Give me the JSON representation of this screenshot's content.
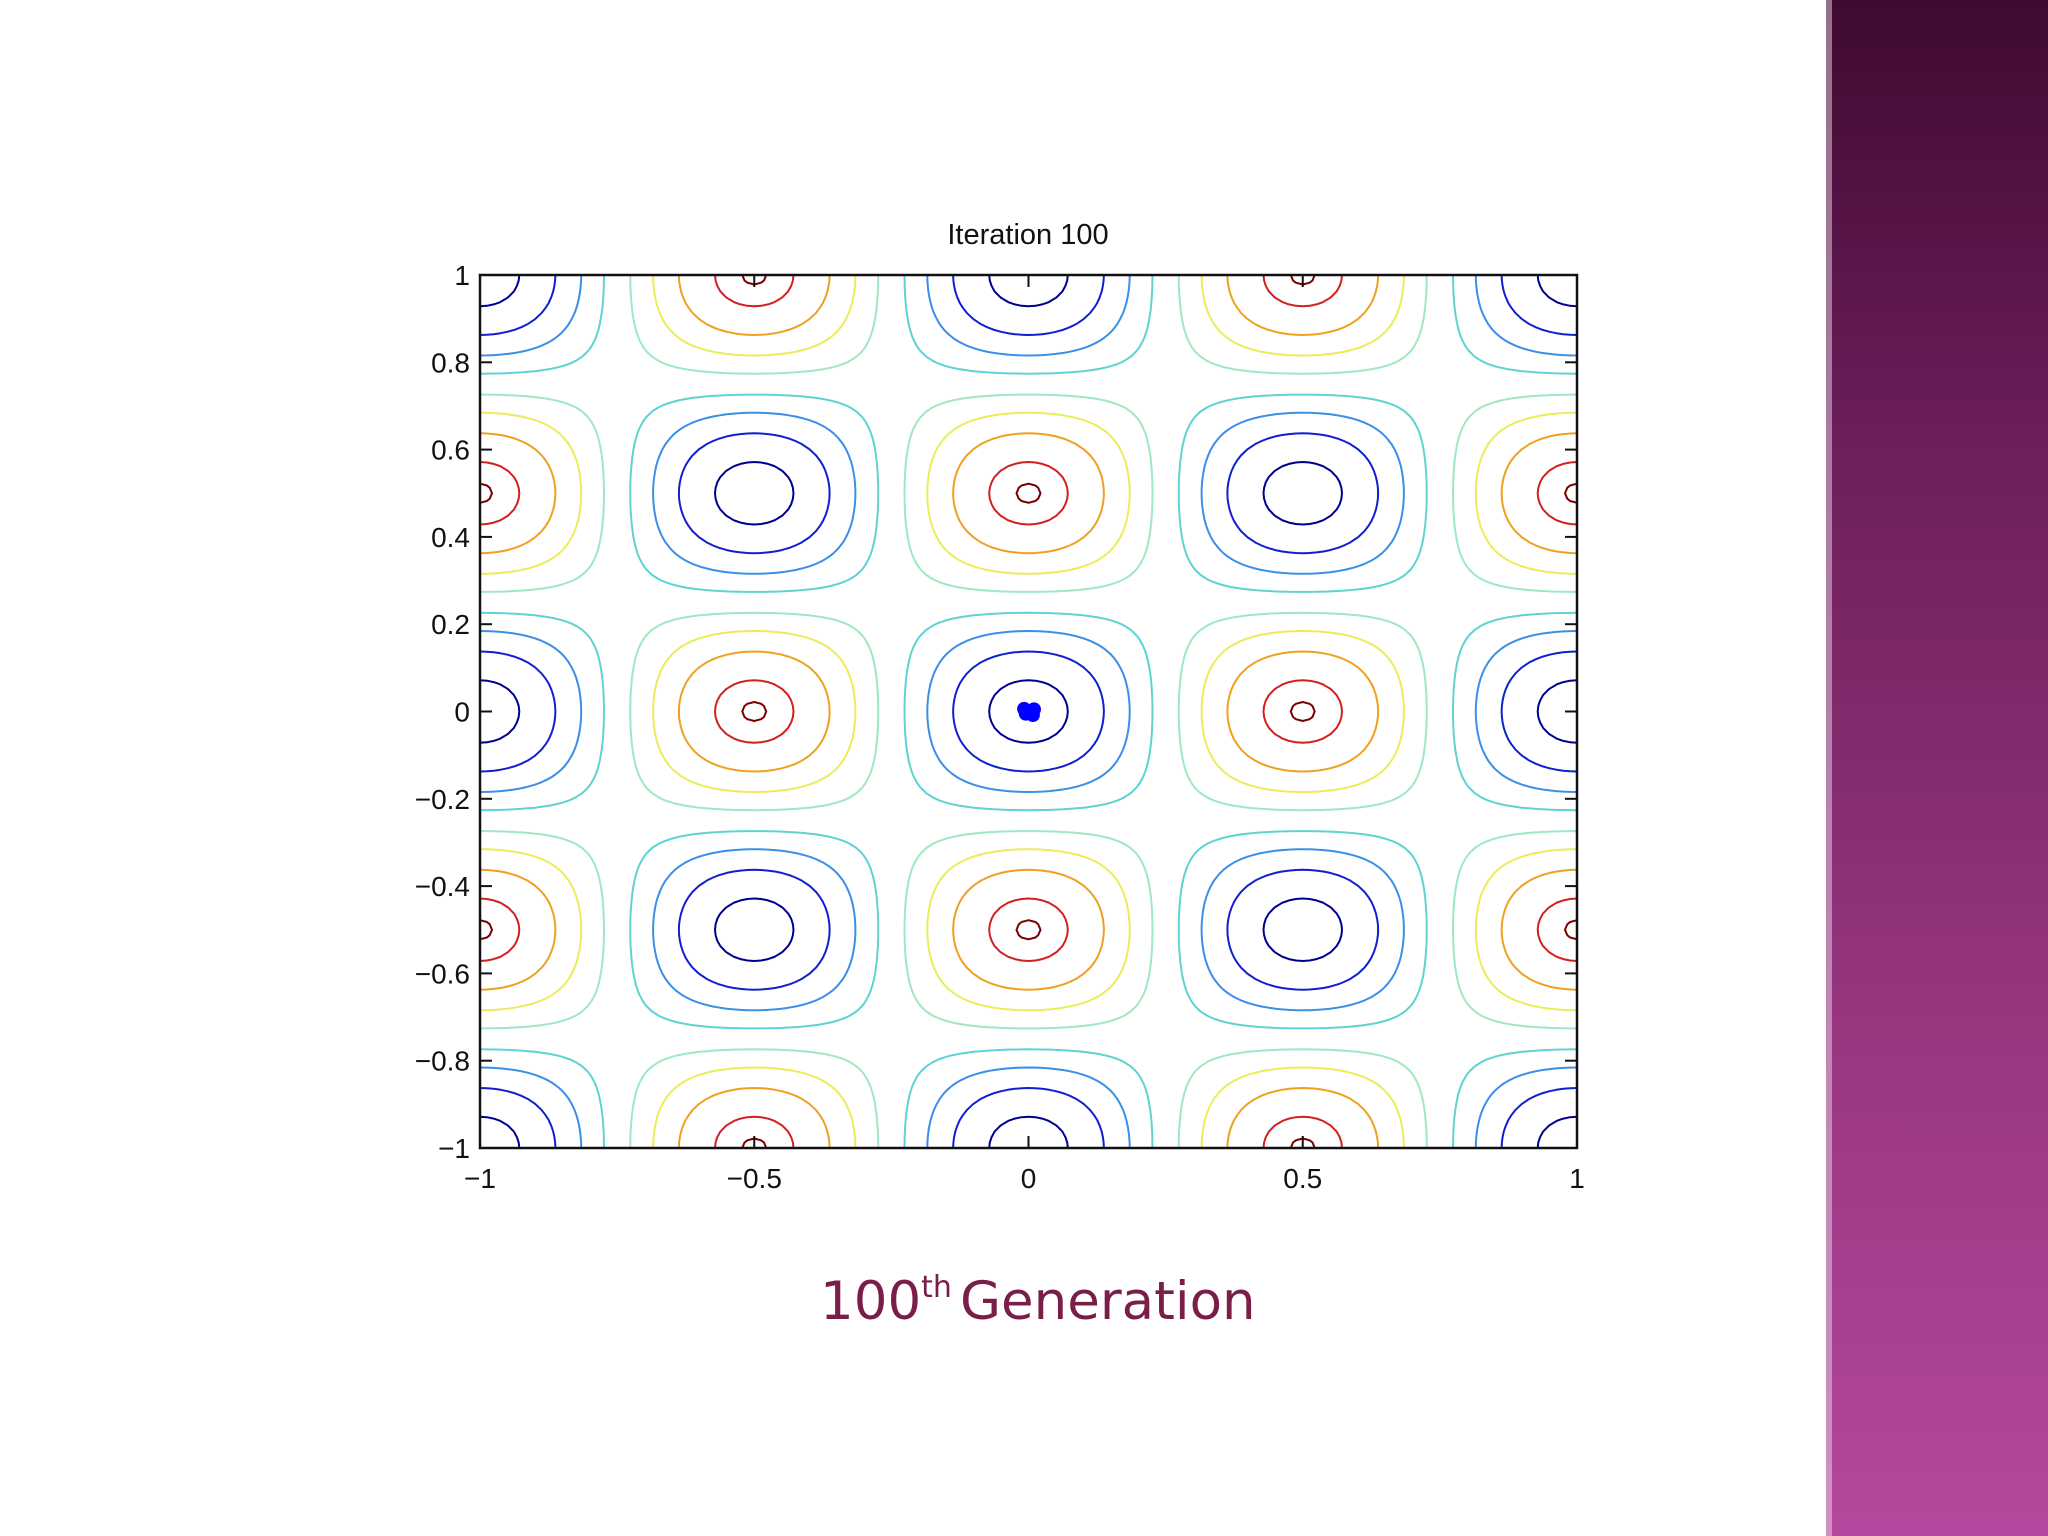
{
  "slide": {
    "caption_number": "100",
    "caption_suffix": "th",
    "caption_text": "Generation"
  },
  "colors": {
    "band_top": "#3f0a30",
    "band_bottom": "#b4489e",
    "caption": "#7a1d48",
    "best_point": "#0000ff"
  },
  "chart_data": {
    "type": "contour",
    "title": "Iteration 100",
    "xlabel": "",
    "ylabel": "",
    "xlim": [
      -1,
      1
    ],
    "ylim": [
      -1,
      1
    ],
    "xticks": [
      -1,
      -0.5,
      0,
      0.5,
      1
    ],
    "xtick_labels": [
      "−1",
      "−0.5",
      "0",
      "0.5",
      "1"
    ],
    "yticks": [
      -1,
      -0.8,
      -0.6,
      -0.4,
      -0.2,
      0,
      0.2,
      0.4,
      0.6,
      0.8,
      1
    ],
    "ytick_labels": [
      "−1",
      "−0.8",
      "−0.6",
      "−0.4",
      "−0.2",
      "0",
      "0.2",
      "0.4",
      "0.6",
      "0.8",
      "1"
    ],
    "grid": false,
    "contour_levels": [
      {
        "level": -0.9,
        "color": "#00008f"
      },
      {
        "level": -0.65,
        "color": "#1020d0"
      },
      {
        "level": -0.4,
        "color": "#3a8fe8"
      },
      {
        "level": -0.15,
        "color": "#5fd2d2"
      },
      {
        "level": 0.15,
        "color": "#9fe8c0"
      },
      {
        "level": 0.4,
        "color": "#ecec5a"
      },
      {
        "level": 0.65,
        "color": "#f0a020"
      },
      {
        "level": 0.9,
        "color": "#d21f1f"
      },
      {
        "level": 0.99,
        "color": "#7a0000"
      }
    ],
    "points": [
      {
        "x": 0.0,
        "y": 0.0
      },
      {
        "x": 0.01,
        "y": 0.005
      },
      {
        "x": -0.005,
        "y": -0.005
      },
      {
        "x": 0.008,
        "y": -0.008
      },
      {
        "x": -0.008,
        "y": 0.006
      }
    ]
  }
}
